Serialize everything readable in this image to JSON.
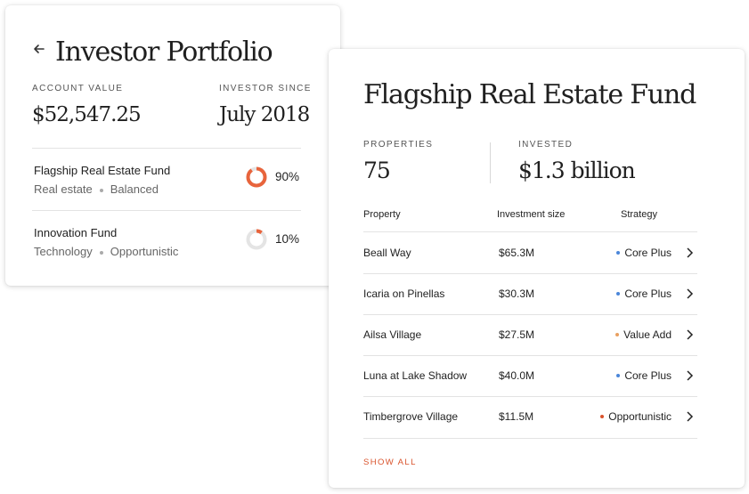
{
  "portfolio": {
    "title": "Investor Portfolio",
    "account_value_label": "ACCOUNT VALUE",
    "account_value": "$52,547.25",
    "investor_since_label": "INVESTOR SINCE",
    "investor_since": "July 2018",
    "funds": [
      {
        "name": "Flagship Real Estate Fund",
        "category": "Real estate",
        "style": "Balanced",
        "percent_label": "90%",
        "percent": 90,
        "color": "#e8643c"
      },
      {
        "name": "Innovation Fund",
        "category": "Technology",
        "style": "Opportunistic",
        "percent_label": "10%",
        "percent": 10,
        "color": "#e8643c"
      }
    ]
  },
  "fund": {
    "title": "Flagship Real Estate Fund",
    "properties_label": "PROPERTIES",
    "properties": "75",
    "invested_label": "INVESTED",
    "invested": "$1.3 billion",
    "columns": [
      "Property",
      "Investment size",
      "Strategy"
    ],
    "rows": [
      {
        "property": "Beall Way",
        "size": "$65.3M",
        "strategy": "Core Plus",
        "dot_color": "#4a86d9"
      },
      {
        "property": "Icaria on Pinellas",
        "size": "$30.3M",
        "strategy": "Core Plus",
        "dot_color": "#4a86d9"
      },
      {
        "property": "Ailsa Village",
        "size": "$27.5M",
        "strategy": "Value Add",
        "dot_color": "#e8a060"
      },
      {
        "property": "Luna at Lake Shadow",
        "size": "$40.0M",
        "strategy": "Core Plus",
        "dot_color": "#4a86d9"
      },
      {
        "property": "Timbergrove Village",
        "size": "$11.5M",
        "strategy": "Opportunistic",
        "dot_color": "#d9532c"
      }
    ],
    "show_all_label": "SHOW ALL"
  },
  "colors": {
    "accent": "#d9532c",
    "donut_track": "#e4e4e4"
  }
}
